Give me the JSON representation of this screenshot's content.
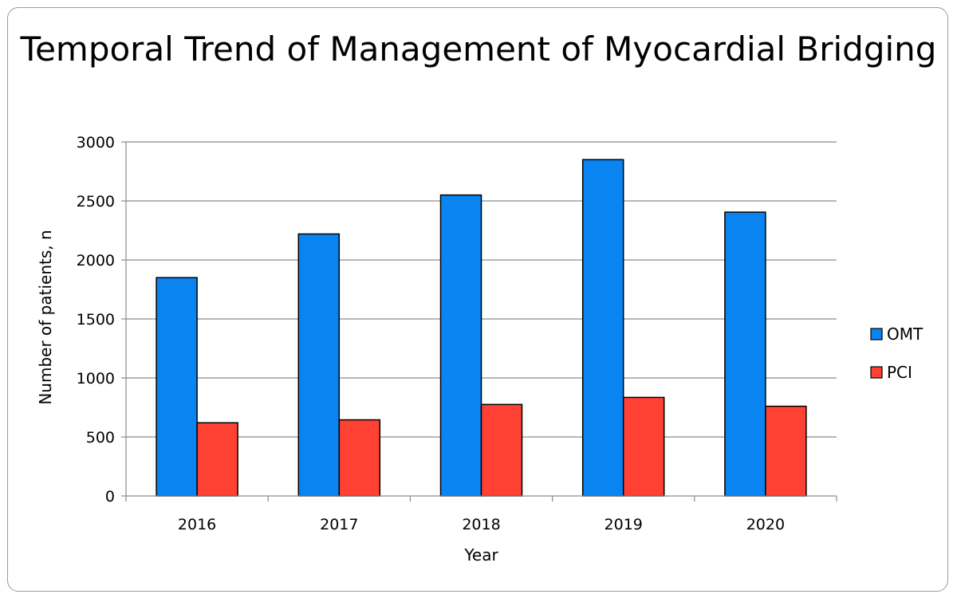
{
  "chart_data": {
    "type": "bar",
    "title": "Temporal Trend of Management of Myocardial Bridging",
    "xlabel": "Year",
    "ylabel": "Number of patients, n",
    "categories": [
      "2016",
      "2017",
      "2018",
      "2019",
      "2020"
    ],
    "series": [
      {
        "name": "OMT",
        "color": "#0a84f0",
        "values": [
          1850,
          2220,
          2550,
          2850,
          2405
        ]
      },
      {
        "name": "PCI",
        "color": "#ff4133",
        "values": [
          620,
          645,
          775,
          835,
          760
        ]
      }
    ],
    "ylim": [
      0,
      3000
    ],
    "yticks": [
      0,
      500,
      1000,
      1500,
      2000,
      2500,
      3000
    ],
    "grid": true,
    "legend_position": "right"
  }
}
